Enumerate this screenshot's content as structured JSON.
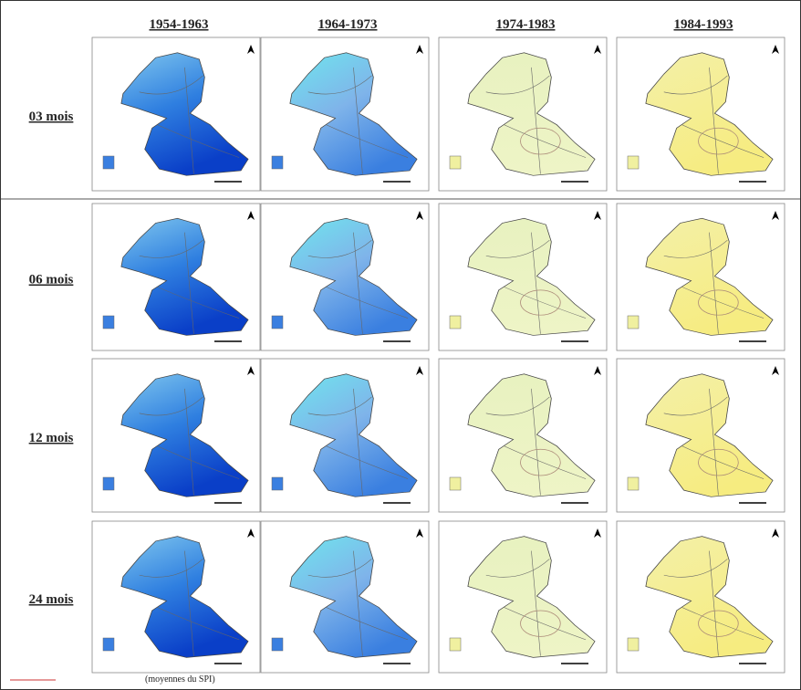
{
  "columns": [
    "1954-1963",
    "1964-1973",
    "1974-1983",
    "1984-1993"
  ],
  "rows": [
    "03 mois",
    "06 mois",
    "12 mois",
    "24 mois"
  ],
  "caption": "(moyennes du SPI)"
}
